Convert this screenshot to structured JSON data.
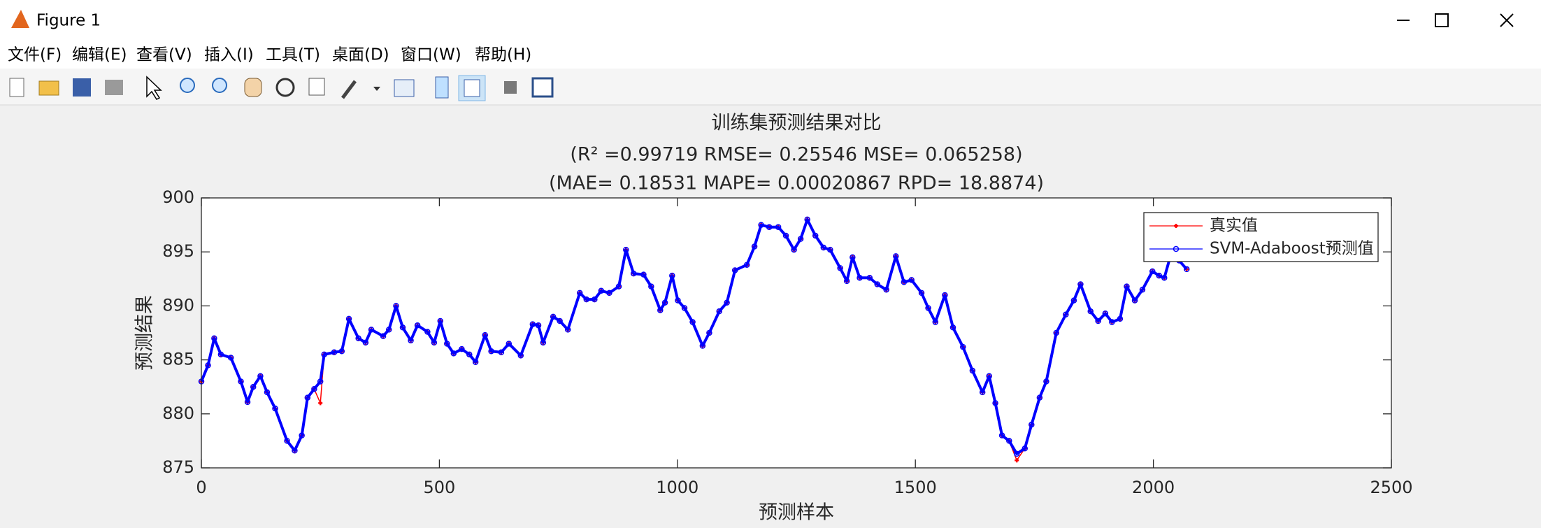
{
  "window": {
    "title": "Figure 1",
    "menu": [
      "文件(F)",
      "编辑(E)",
      "查看(V)",
      "插入(I)",
      "工具(T)",
      "桌面(D)",
      "窗口(W)",
      "帮助(H)"
    ]
  },
  "chart_data": {
    "type": "line",
    "title": [
      "训练集预测结果对比",
      "(R² =0.99719 RMSE= 0.25546 MSE= 0.065258)",
      "(MAE= 0.18531 MAPE= 0.00020867 RPD= 18.8874)"
    ],
    "xlabel": "预测样本",
    "ylabel": "预测结果",
    "x": [
      0,
      14,
      27,
      41,
      62,
      83,
      97,
      109,
      124,
      138,
      155,
      180,
      196,
      211,
      223,
      237,
      250,
      258,
      279,
      295,
      310,
      330,
      345,
      357,
      382,
      394,
      409,
      423,
      440,
      454,
      475,
      489,
      502,
      516,
      530,
      547,
      563,
      576,
      596,
      609,
      630,
      646,
      671,
      696,
      708,
      718,
      739,
      753,
      770,
      795,
      809,
      826,
      840,
      857,
      877,
      892,
      908,
      929,
      945,
      964,
      974,
      989,
      1001,
      1015,
      1032,
      1053,
      1067,
      1088,
      1104,
      1121,
      1146,
      1162,
      1176,
      1193,
      1212,
      1228,
      1245,
      1259,
      1273,
      1290,
      1307,
      1321,
      1342,
      1356,
      1368,
      1383,
      1404,
      1420,
      1439,
      1459,
      1476,
      1492,
      1513,
      1527,
      1542,
      1562,
      1579,
      1600,
      1620,
      1641,
      1655,
      1668,
      1682,
      1697,
      1713,
      1730,
      1744,
      1761,
      1775,
      1796,
      1816,
      1833,
      1847,
      1868,
      1884,
      1899,
      1913,
      1930,
      1944,
      1961,
      1977,
      1998,
      2012,
      2023,
      2037,
      2054,
      2070
    ],
    "series": [
      {
        "name": "真实值",
        "color": "#ff0000",
        "marker": "*",
        "values": [
          883,
          884.5,
          887,
          885.5,
          885.2,
          883,
          881.1,
          882.5,
          883.5,
          882,
          880.5,
          877.5,
          876.6,
          878,
          881.5,
          882.3,
          881,
          885.5,
          885.7,
          885.8,
          888.8,
          887,
          886.6,
          887.8,
          887.2,
          887.8,
          890,
          888,
          886.8,
          888.2,
          887.6,
          886.6,
          888.6,
          886.5,
          885.6,
          886,
          885.5,
          884.8,
          887.3,
          885.8,
          885.7,
          886.5,
          885.4,
          888.3,
          888.2,
          886.6,
          889,
          888.6,
          887.8,
          891.2,
          890.6,
          890.6,
          891.4,
          891.2,
          891.8,
          895.2,
          893,
          892.9,
          891.8,
          889.6,
          890.3,
          892.8,
          890.5,
          889.8,
          888.5,
          886.3,
          887.5,
          889.5,
          890.3,
          893.3,
          893.8,
          895.5,
          897.5,
          897.3,
          897.3,
          896.5,
          895.2,
          896.2,
          898,
          896.5,
          895.4,
          895.2,
          893.5,
          892.3,
          894.5,
          892.6,
          892.6,
          892,
          891.5,
          894.6,
          892.2,
          892.4,
          891.2,
          889.8,
          888.5,
          891,
          888,
          886.2,
          884,
          882,
          883.5,
          881,
          878,
          877.5,
          875.7,
          876.8,
          879,
          881.5,
          883,
          887.5,
          889.2,
          890.5,
          892,
          889.5,
          888.6,
          889.3,
          888.5,
          888.8,
          891.8,
          890.5,
          891.5,
          893.2,
          892.8,
          892.6,
          894.8,
          894.2,
          893.4
        ]
      },
      {
        "name": "SVM-Adaboost预测值",
        "color": "#0000ff",
        "marker": "o",
        "values": [
          883,
          884.5,
          887,
          885.5,
          885.2,
          883,
          881.1,
          882.5,
          883.5,
          882,
          880.5,
          877.5,
          876.6,
          878,
          881.5,
          882.3,
          883,
          885.5,
          885.7,
          885.8,
          888.8,
          887,
          886.6,
          887.8,
          887.2,
          887.8,
          890,
          888,
          886.8,
          888.2,
          887.6,
          886.6,
          888.6,
          886.5,
          885.6,
          886,
          885.5,
          884.8,
          887.3,
          885.8,
          885.7,
          886.5,
          885.4,
          888.3,
          888.2,
          886.6,
          889,
          888.6,
          887.8,
          891.2,
          890.6,
          890.6,
          891.4,
          891.2,
          891.8,
          895.2,
          893,
          892.9,
          891.8,
          889.6,
          890.3,
          892.8,
          890.5,
          889.8,
          888.5,
          886.3,
          887.5,
          889.5,
          890.3,
          893.3,
          893.8,
          895.5,
          897.5,
          897.3,
          897.3,
          896.5,
          895.2,
          896.2,
          898,
          896.5,
          895.4,
          895.2,
          893.5,
          892.3,
          894.5,
          892.6,
          892.6,
          892,
          891.5,
          894.6,
          892.2,
          892.4,
          891.2,
          889.8,
          888.5,
          891,
          888,
          886.2,
          884,
          882,
          883.5,
          881,
          878,
          877.5,
          876.3,
          876.8,
          879,
          881.5,
          883,
          887.5,
          889.2,
          890.5,
          892,
          889.5,
          888.6,
          889.3,
          888.5,
          888.8,
          891.8,
          890.5,
          891.5,
          893.2,
          892.8,
          892.6,
          894.8,
          894.2,
          893.4
        ]
      }
    ],
    "xlim": [
      0,
      2500
    ],
    "ylim": [
      875,
      900
    ],
    "xticks": [
      0,
      500,
      1000,
      1500,
      2000,
      2500
    ],
    "yticks": [
      875,
      880,
      885,
      890,
      895,
      900
    ],
    "legend": "upper right",
    "box": true
  }
}
